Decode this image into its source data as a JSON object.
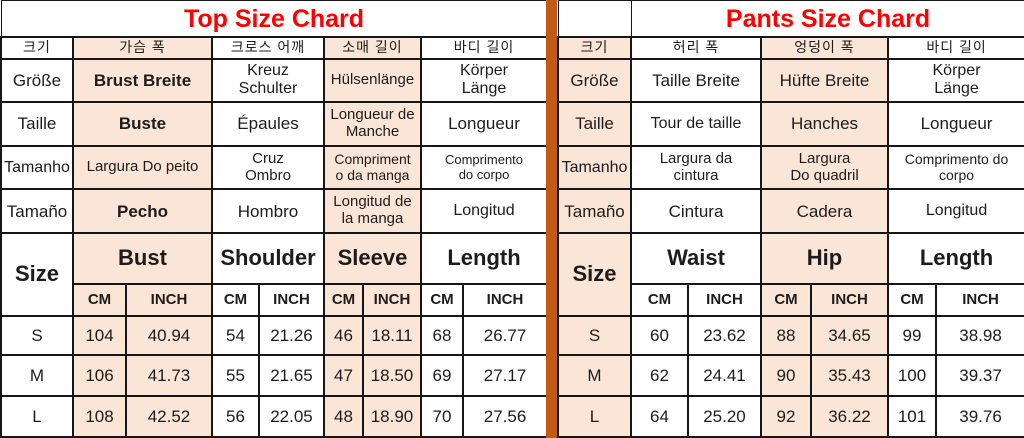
{
  "colors": {
    "peach_fill": "#FBE5D6",
    "divider_orange": "#C05A15",
    "title_red": "#FF0000",
    "border_black": "#161616"
  },
  "tables": {
    "top": {
      "title": "Top Size Chard",
      "rows": [
        {
          "cls": "title",
          "cells": [
            {
              "t": "Top Size Chard",
              "s": 9,
              "name": "top-table-title"
            }
          ]
        },
        {
          "cls": "ko",
          "cells": [
            {
              "t": "크기"
            },
            {
              "t": "가슴 폭",
              "s": 2,
              "bg": 1
            },
            {
              "t": "크로스 어깨",
              "s": 2
            },
            {
              "t": "소매 길이",
              "s": 2,
              "bg": 1
            },
            {
              "t": "바디 길이",
              "s": 2
            }
          ]
        },
        {
          "cls": "lang",
          "cells": [
            {
              "t": "Größe"
            },
            {
              "t": "Brust Breite",
              "s": 2,
              "bg": 1,
              "b": 1
            },
            {
              "t": "Kreuz\nSchulter",
              "s": 2,
              "fs": 16
            },
            {
              "t": "Hülsenlänge",
              "s": 2,
              "bg": 1,
              "fs": 15
            },
            {
              "t": "Körper\nLänge",
              "s": 2,
              "fs": 16
            }
          ]
        },
        {
          "cls": "lang",
          "cells": [
            {
              "t": "Taille"
            },
            {
              "t": "Buste",
              "s": 2,
              "bg": 1,
              "b": 1
            },
            {
              "t": "Épaules",
              "s": 2
            },
            {
              "t": "Longueur de\nManche",
              "s": 2,
              "bg": 1,
              "fs": 15
            },
            {
              "t": "Longueur",
              "s": 2
            }
          ]
        },
        {
          "cls": "lang",
          "cells": [
            {
              "t": "Tamanho",
              "fs": 16
            },
            {
              "t": "Largura Do peito",
              "s": 2,
              "bg": 1,
              "fs": 15
            },
            {
              "t": "Cruz\nOmbro",
              "s": 2,
              "fs": 15
            },
            {
              "t": "Compriment\no da manga",
              "s": 2,
              "bg": 1,
              "fs": 14
            },
            {
              "t": "Comprimento\ndo corpo",
              "s": 2,
              "fs": 13
            }
          ]
        },
        {
          "cls": "lang",
          "cells": [
            {
              "t": "Tamaño"
            },
            {
              "t": "Pecho",
              "s": 2,
              "bg": 1,
              "b": 1
            },
            {
              "t": "Hombro",
              "s": 2
            },
            {
              "t": "Longitud de\nla manga",
              "s": 2,
              "bg": 1,
              "fs": 15
            },
            {
              "t": "Longitud",
              "s": 2,
              "fs": 16
            }
          ]
        },
        {
          "cls": "hdr",
          "cells": [
            {
              "t": "Size",
              "rs": 2
            },
            {
              "t": "Bust",
              "s": 2,
              "bg": 1
            },
            {
              "t": "Shoulder",
              "s": 2
            },
            {
              "t": "Sleeve",
              "s": 2,
              "bg": 1
            },
            {
              "t": "Length",
              "s": 2
            }
          ]
        },
        {
          "cls": "unit",
          "cells": [
            {
              "t": "CM",
              "bg": 1
            },
            {
              "t": "INCH",
              "bg": 1
            },
            {
              "t": "CM"
            },
            {
              "t": "INCH"
            },
            {
              "t": "CM",
              "bg": 1
            },
            {
              "t": "INCH",
              "bg": 1
            },
            {
              "t": "CM"
            },
            {
              "t": "INCH"
            }
          ]
        },
        {
          "cls": "data",
          "cells": [
            {
              "t": "S"
            },
            {
              "t": "104",
              "bg": 1
            },
            {
              "t": "40.94",
              "bg": 1
            },
            {
              "t": "54"
            },
            {
              "t": "21.26"
            },
            {
              "t": "46",
              "bg": 1
            },
            {
              "t": "18.11",
              "bg": 1
            },
            {
              "t": "68"
            },
            {
              "t": "26.77"
            }
          ]
        },
        {
          "cls": "data",
          "cells": [
            {
              "t": "M"
            },
            {
              "t": "106",
              "bg": 1
            },
            {
              "t": "41.73",
              "bg": 1
            },
            {
              "t": "55"
            },
            {
              "t": "21.65"
            },
            {
              "t": "47",
              "bg": 1
            },
            {
              "t": "18.50",
              "bg": 1
            },
            {
              "t": "69"
            },
            {
              "t": "27.17"
            }
          ]
        },
        {
          "cls": "data",
          "cells": [
            {
              "t": "L"
            },
            {
              "t": "108",
              "bg": 1
            },
            {
              "t": "42.52",
              "bg": 1
            },
            {
              "t": "56"
            },
            {
              "t": "22.05"
            },
            {
              "t": "48",
              "bg": 1
            },
            {
              "t": "18.90",
              "bg": 1
            },
            {
              "t": "70"
            },
            {
              "t": "27.56"
            }
          ]
        }
      ]
    },
    "pants": {
      "title": "Pants Size Chard",
      "rows": [
        {
          "cls": "title",
          "cells": [
            {
              "t": ""
            },
            {
              "t": "Pants Size Chard",
              "s": 6,
              "name": "pants-table-title"
            }
          ]
        },
        {
          "cls": "ko",
          "cells": [
            {
              "t": "크기",
              "bg": 1
            },
            {
              "t": "허리 폭",
              "s": 2
            },
            {
              "t": "엉덩이 폭",
              "s": 2,
              "bg": 1
            },
            {
              "t": "바디 길이",
              "s": 2
            }
          ]
        },
        {
          "cls": "lang",
          "cells": [
            {
              "t": "Größe",
              "bg": 1
            },
            {
              "t": "Taille Breite",
              "s": 2
            },
            {
              "t": "Hüfte Breite",
              "s": 2,
              "bg": 1
            },
            {
              "t": "Körper\nLänge",
              "s": 2,
              "fs": 16
            }
          ]
        },
        {
          "cls": "lang",
          "cells": [
            {
              "t": "Taille",
              "bg": 1
            },
            {
              "t": "Tour de taille",
              "s": 2,
              "fs": 16
            },
            {
              "t": "Hanches",
              "s": 2,
              "bg": 1
            },
            {
              "t": "Longueur",
              "s": 2
            }
          ]
        },
        {
          "cls": "lang",
          "cells": [
            {
              "t": "Tamanho",
              "bg": 1,
              "fs": 16
            },
            {
              "t": "Largura da\ncintura",
              "s": 2,
              "fs": 15
            },
            {
              "t": "Largura\nDo quadril",
              "s": 2,
              "bg": 1,
              "fs": 15
            },
            {
              "t": "Comprimento do\ncorpo",
              "s": 2,
              "fs": 14
            }
          ]
        },
        {
          "cls": "lang",
          "cells": [
            {
              "t": "Tamaño",
              "bg": 1
            },
            {
              "t": "Cintura",
              "s": 2
            },
            {
              "t": "Cadera",
              "s": 2,
              "bg": 1
            },
            {
              "t": "Longitud",
              "s": 2,
              "fs": 16
            }
          ]
        },
        {
          "cls": "hdr",
          "cells": [
            {
              "t": "Size",
              "rs": 2,
              "bg": 1
            },
            {
              "t": "Waist",
              "s": 2
            },
            {
              "t": "Hip",
              "s": 2,
              "bg": 1
            },
            {
              "t": "Length",
              "s": 2
            }
          ]
        },
        {
          "cls": "unit",
          "cells": [
            {
              "t": "CM"
            },
            {
              "t": "INCH"
            },
            {
              "t": "CM",
              "bg": 1
            },
            {
              "t": "INCH",
              "bg": 1
            },
            {
              "t": "CM"
            },
            {
              "t": "INCH"
            }
          ]
        },
        {
          "cls": "data",
          "cells": [
            {
              "t": "S",
              "bg": 1
            },
            {
              "t": "60"
            },
            {
              "t": "23.62"
            },
            {
              "t": "88",
              "bg": 1
            },
            {
              "t": "34.65",
              "bg": 1
            },
            {
              "t": "99"
            },
            {
              "t": "38.98"
            }
          ]
        },
        {
          "cls": "data",
          "cells": [
            {
              "t": "M",
              "bg": 1
            },
            {
              "t": "62"
            },
            {
              "t": "24.41"
            },
            {
              "t": "90",
              "bg": 1
            },
            {
              "t": "35.43",
              "bg": 1
            },
            {
              "t": "100"
            },
            {
              "t": "39.37"
            }
          ]
        },
        {
          "cls": "data",
          "cells": [
            {
              "t": "L",
              "bg": 1
            },
            {
              "t": "64"
            },
            {
              "t": "25.20"
            },
            {
              "t": "92",
              "bg": 1
            },
            {
              "t": "36.22",
              "bg": 1
            },
            {
              "t": "101"
            },
            {
              "t": "39.76"
            }
          ]
        }
      ]
    }
  }
}
